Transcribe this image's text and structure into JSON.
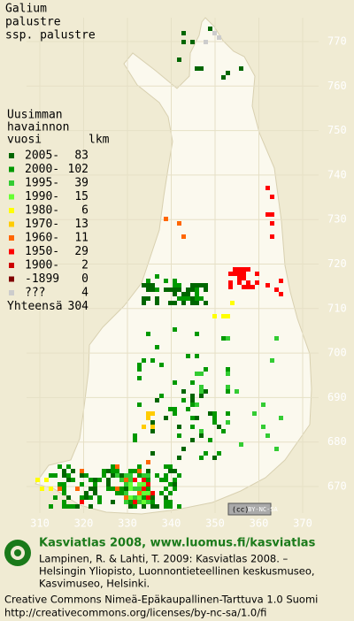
{
  "title": [
    "Galium",
    "palustre",
    "ssp. palustre"
  ],
  "legend": {
    "heading": [
      "Uusimman",
      "havainnon",
      "vuosi"
    ],
    "count_heading": "lkm",
    "entries": [
      {
        "label": "2005-",
        "count": 83,
        "color": "#006600"
      },
      {
        "label": "2000-",
        "count": 102,
        "color": "#009900"
      },
      {
        "label": "1995-",
        "count": 39,
        "color": "#33cc33"
      },
      {
        "label": "1990-",
        "count": 15,
        "color": "#66ff33"
      },
      {
        "label": "1980-",
        "count": 6,
        "color": "#ffff00"
      },
      {
        "label": "1970-",
        "count": 13,
        "color": "#ffcc00"
      },
      {
        "label": "1960-",
        "count": 11,
        "color": "#ff6600"
      },
      {
        "label": "1950-",
        "count": 29,
        "color": "#ff0000"
      },
      {
        "label": "1900-",
        "count": 2,
        "color": "#cc0000"
      },
      {
        "label": "-1899",
        "count": 0,
        "color": "#800000"
      },
      {
        "label": "???",
        "count": 4,
        "color": "#cccccc"
      }
    ],
    "total_label": "Yhteensä",
    "total": 304
  },
  "map": {
    "x_ticks": [
      310,
      320,
      330,
      340,
      350,
      360,
      370
    ],
    "y_ticks": [
      670,
      680,
      690,
      700,
      710,
      720,
      730,
      740,
      750,
      760,
      770
    ]
  },
  "footer": {
    "badge": "BY-NC-SA",
    "brand": "Kasviatlas 2008, www.luomus.fi/kasviatlas",
    "citation": [
      "Lampinen, R. & Lahti, T. 2009: Kasviatlas 2008. –",
      "Helsingin Yliopisto, Luonnontieteellinen keskusmuseo,",
      "Kasvimuseo, Helsinki."
    ],
    "license": [
      "Creative Commons Nimeä-Epäkaupallinen-Tarttuva 1.0 Suomi",
      "http://creativecommons.org/licenses/by-nc-sa/1.0/fi"
    ]
  }
}
